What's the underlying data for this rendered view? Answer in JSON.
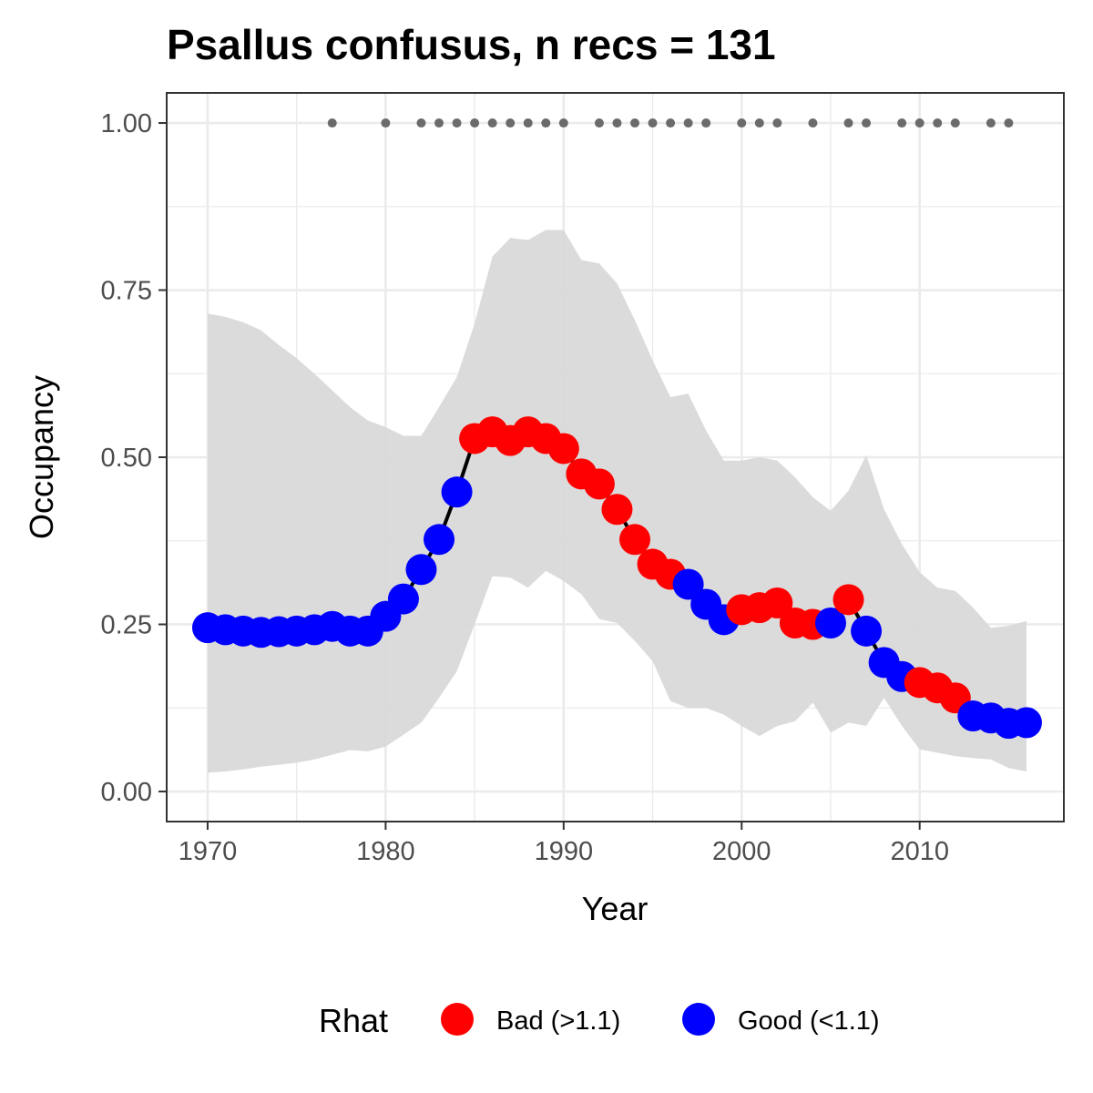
{
  "chart_data": {
    "type": "line",
    "title": "Psallus confusus, n recs = 131",
    "xlabel": "Year",
    "ylabel": "Occupancy",
    "xlim": [
      1967.7,
      2018.1
    ],
    "ylim": [
      -0.045,
      1.045
    ],
    "x_ticks": [
      1970,
      1980,
      1990,
      2000,
      2010
    ],
    "x_tick_labels": [
      "1970",
      "1980",
      "1990",
      "2000",
      "2010"
    ],
    "y_ticks": [
      0,
      0.25,
      0.5,
      0.75,
      1.0
    ],
    "y_tick_labels": [
      "0.00",
      "0.25",
      "0.50",
      "0.75",
      "1.00"
    ],
    "grid": true,
    "legend_position": "bottom",
    "colors": {
      "bad": "#ff0000",
      "good": "#0000ff",
      "ribbon": "#d9d9d9",
      "line": "#000000",
      "record_points": "#6b6b6b",
      "panel_border": "#333333",
      "grid_major": "#ebebeb"
    },
    "legend": {
      "title": "Rhat",
      "entries": [
        {
          "key": "bad",
          "label": "Bad (>1.1)"
        },
        {
          "key": "good",
          "label": "Good (<1.1)"
        }
      ]
    },
    "series": [
      {
        "years": [
          1970,
          1971,
          1972,
          1973,
          1974,
          1975,
          1976,
          1977,
          1978,
          1979,
          1980,
          1981,
          1982,
          1983,
          1984,
          1985,
          1986,
          1987,
          1988,
          1989,
          1990,
          1991,
          1992,
          1993,
          1994,
          1995,
          1996,
          1997,
          1998,
          1999,
          2000,
          2001,
          2002,
          2003,
          2004,
          2005,
          2006,
          2007,
          2008,
          2009,
          2010,
          2011,
          2012,
          2013,
          2014,
          2015,
          2016
        ],
        "occupancy": [
          0.245,
          0.242,
          0.24,
          0.238,
          0.239,
          0.24,
          0.242,
          0.247,
          0.24,
          0.24,
          0.262,
          0.288,
          0.332,
          0.377,
          0.448,
          0.528,
          0.538,
          0.525,
          0.538,
          0.528,
          0.513,
          0.475,
          0.46,
          0.422,
          0.377,
          0.34,
          0.325,
          0.31,
          0.28,
          0.257,
          0.272,
          0.275,
          0.282,
          0.252,
          0.25,
          0.252,
          0.287,
          0.24,
          0.193,
          0.172,
          0.163,
          0.155,
          0.14,
          0.113,
          0.11,
          0.102,
          0.103
        ],
        "lower": [
          0.028,
          0.03,
          0.033,
          0.037,
          0.04,
          0.043,
          0.048,
          0.055,
          0.062,
          0.06,
          0.067,
          0.085,
          0.103,
          0.14,
          0.18,
          0.25,
          0.322,
          0.32,
          0.305,
          0.33,
          0.315,
          0.295,
          0.258,
          0.252,
          0.225,
          0.195,
          0.135,
          0.125,
          0.125,
          0.115,
          0.098,
          0.083,
          0.098,
          0.105,
          0.133,
          0.088,
          0.103,
          0.098,
          0.14,
          0.098,
          0.063,
          0.058,
          0.053,
          0.05,
          0.048,
          0.035,
          0.03
        ],
        "upper": [
          0.715,
          0.71,
          0.702,
          0.69,
          0.668,
          0.648,
          0.625,
          0.6,
          0.575,
          0.555,
          0.545,
          0.532,
          0.532,
          0.575,
          0.62,
          0.7,
          0.8,
          0.828,
          0.825,
          0.84,
          0.84,
          0.795,
          0.79,
          0.76,
          0.705,
          0.645,
          0.59,
          0.595,
          0.54,
          0.495,
          0.495,
          0.5,
          0.495,
          0.47,
          0.44,
          0.42,
          0.45,
          0.503,
          0.422,
          0.37,
          0.328,
          0.305,
          0.3,
          0.275,
          0.245,
          0.248,
          0.255
        ],
        "rhat": [
          "good",
          "good",
          "good",
          "good",
          "good",
          "good",
          "good",
          "good",
          "good",
          "good",
          "good",
          "good",
          "good",
          "good",
          "good",
          "bad",
          "bad",
          "bad",
          "bad",
          "bad",
          "bad",
          "bad",
          "bad",
          "bad",
          "bad",
          "bad",
          "bad",
          "good",
          "good",
          "good",
          "bad",
          "bad",
          "bad",
          "bad",
          "bad",
          "good",
          "bad",
          "good",
          "good",
          "good",
          "bad",
          "bad",
          "bad",
          "good",
          "good",
          "good",
          "good"
        ]
      }
    ],
    "record_years": [
      1977,
      1980,
      1982,
      1983,
      1984,
      1985,
      1986,
      1987,
      1988,
      1989,
      1990,
      1992,
      1993,
      1994,
      1995,
      1996,
      1997,
      1998,
      2000,
      2001,
      2002,
      2004,
      2006,
      2007,
      2009,
      2010,
      2011,
      2012,
      2014,
      2015
    ],
    "record_value": 1.0
  }
}
